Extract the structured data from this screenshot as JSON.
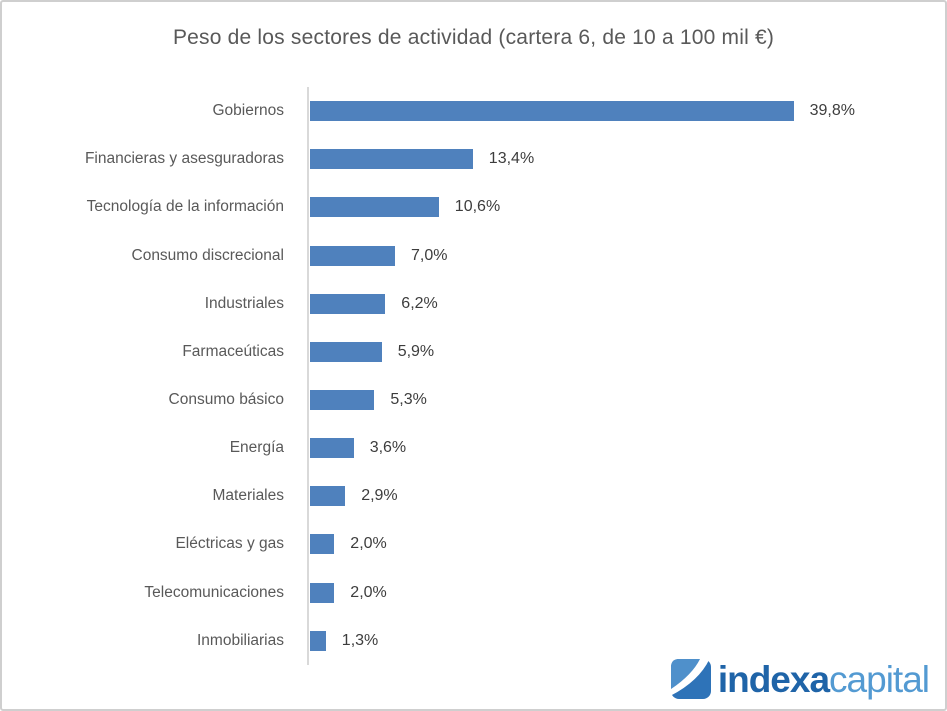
{
  "title": "Peso de los sectores de actividad (cartera 6, de 10 a 100 mil €)",
  "chart_data": {
    "type": "bar",
    "orientation": "horizontal",
    "categories": [
      "Gobiernos",
      "Financieras y asesguradoras",
      "Tecnología de la información",
      "Consumo discrecional",
      "Industriales",
      "Farmaceúticas",
      "Consumo básico",
      "Energía",
      "Materiales",
      "Eléctricas y gas",
      "Telecomunicaciones",
      "Inmobiliarias"
    ],
    "values": [
      39.8,
      13.4,
      10.6,
      7.0,
      6.2,
      5.9,
      5.3,
      3.6,
      2.9,
      2.0,
      2.0,
      1.3
    ],
    "value_labels": [
      "39,8%",
      "13,4%",
      "10,6%",
      "7,0%",
      "6,2%",
      "5,9%",
      "5,3%",
      "3,6%",
      "2,9%",
      "2,0%",
      "2,0%",
      "1,3%"
    ],
    "title": "Peso de los sectores de actividad (cartera 6, de 10 a 100 mil €)",
    "xlabel": "",
    "ylabel": "",
    "xlim": [
      0,
      43
    ],
    "grid": false,
    "legend": false,
    "bar_color": "#4f81bd",
    "axis_color": "#d9d9d9",
    "category_label_color": "#595959",
    "value_label_color": "#3d3d3d",
    "title_color": "#595959"
  },
  "logo": {
    "name": "indexa capital",
    "part1": "indexa",
    "part2": "capital",
    "part1_color": "#1f64a8",
    "part2_color": "#539ad2",
    "icon": "indexa-swoosh-square-icon",
    "icon_color": "#2e73b8"
  }
}
